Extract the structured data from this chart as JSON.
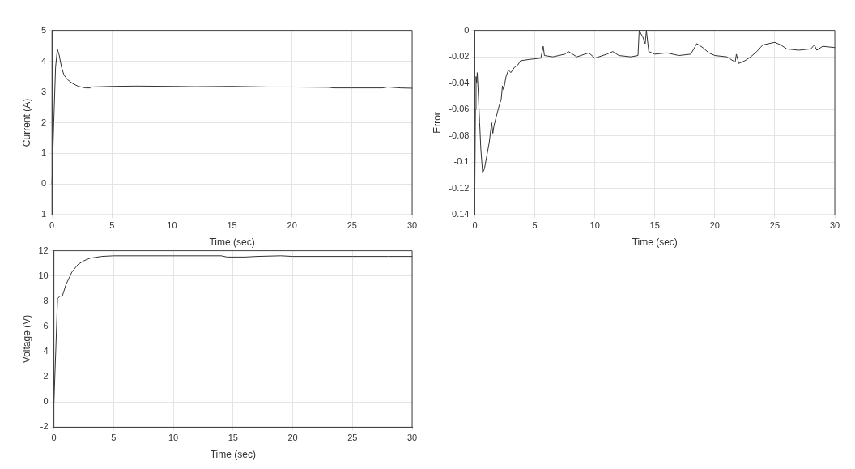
{
  "chart_data": [
    {
      "type": "line",
      "xlabel": "Time (sec)",
      "ylabel": "Current (A)",
      "color": "#333333",
      "xlim": [
        0,
        30
      ],
      "ylim": [
        -1,
        5
      ],
      "xticks": [
        0,
        5,
        10,
        15,
        20,
        25,
        30
      ],
      "yticks": [
        -1,
        0,
        1,
        2,
        3,
        4,
        5
      ],
      "grid": true,
      "x": [
        0,
        0.15,
        0.3,
        0.45,
        0.6,
        0.8,
        1.0,
        1.3,
        1.7,
        2.2,
        2.8,
        3.2,
        3.3,
        5,
        7,
        10,
        12,
        15,
        18,
        20,
        23,
        23.5,
        25,
        27.5,
        28,
        29,
        30
      ],
      "values": [
        0,
        2,
        3.8,
        4.4,
        4.2,
        3.8,
        3.55,
        3.4,
        3.28,
        3.18,
        3.13,
        3.13,
        3.16,
        3.18,
        3.19,
        3.18,
        3.17,
        3.18,
        3.16,
        3.16,
        3.15,
        3.13,
        3.13,
        3.13,
        3.16,
        3.13,
        3.12
      ]
    },
    {
      "type": "line",
      "xlabel": "Time (sec)",
      "ylabel": "Error",
      "color": "#333333",
      "xlim": [
        0,
        30
      ],
      "ylim": [
        -0.14,
        0
      ],
      "xticks": [
        0,
        5,
        10,
        15,
        20,
        25,
        30
      ],
      "yticks": [
        -0.14,
        -0.12,
        -0.1,
        -0.08,
        -0.06,
        -0.04,
        -0.02,
        0
      ],
      "grid": true,
      "x": [
        0,
        0.05,
        0.1,
        0.15,
        0.2,
        0.3,
        0.4,
        0.5,
        0.65,
        0.8,
        1.0,
        1.2,
        1.4,
        1.5,
        1.6,
        1.8,
        2.0,
        2.2,
        2.3,
        2.4,
        2.6,
        2.8,
        3.0,
        3.3,
        3.6,
        3.8,
        4.5,
        5.5,
        5.7,
        5.8,
        6.5,
        7.5,
        7.8,
        8.5,
        9.5,
        10,
        11,
        11.5,
        12,
        13,
        13.6,
        13.7,
        14,
        14.2,
        14.3,
        14.5,
        15,
        16,
        17,
        18,
        18.5,
        19,
        19.5,
        20,
        21,
        21.7,
        21.8,
        22,
        22.5,
        23,
        23.5,
        23.8,
        24,
        25,
        25.5,
        26,
        27,
        28,
        28.3,
        28.5,
        29,
        30
      ],
      "values": [
        -0.12,
        -0.06,
        -0.035,
        -0.04,
        -0.032,
        -0.05,
        -0.07,
        -0.09,
        -0.108,
        -0.105,
        -0.095,
        -0.085,
        -0.07,
        -0.078,
        -0.072,
        -0.065,
        -0.058,
        -0.052,
        -0.042,
        -0.045,
        -0.035,
        -0.03,
        -0.032,
        -0.028,
        -0.026,
        -0.023,
        -0.022,
        -0.021,
        -0.012,
        -0.019,
        -0.02,
        -0.018,
        -0.016,
        -0.02,
        -0.017,
        -0.021,
        -0.018,
        -0.016,
        -0.019,
        -0.02,
        -0.019,
        0,
        -0.005,
        -0.01,
        0,
        -0.016,
        -0.018,
        -0.017,
        -0.019,
        -0.018,
        -0.01,
        -0.013,
        -0.017,
        -0.019,
        -0.02,
        -0.024,
        -0.018,
        -0.025,
        -0.023,
        -0.02,
        -0.016,
        -0.013,
        -0.011,
        -0.009,
        -0.011,
        -0.014,
        -0.015,
        -0.014,
        -0.011,
        -0.015,
        -0.012,
        -0.013
      ]
    },
    {
      "type": "line",
      "xlabel": "Time (sec)",
      "ylabel": "Voltage (V)",
      "color": "#333333",
      "xlim": [
        0,
        30
      ],
      "ylim": [
        -2,
        12
      ],
      "xticks": [
        0,
        5,
        10,
        15,
        20,
        25,
        30
      ],
      "yticks": [
        -2,
        0,
        2,
        4,
        6,
        8,
        10,
        12
      ],
      "grid": true,
      "x": [
        0,
        0.15,
        0.3,
        0.5,
        0.7,
        1.0,
        1.5,
        2,
        2.5,
        3,
        4,
        5,
        10,
        14,
        14.5,
        16,
        17,
        19,
        20,
        25,
        28,
        30
      ],
      "values": [
        0,
        4,
        8.2,
        8.4,
        8.4,
        9.3,
        10.3,
        10.9,
        11.2,
        11.4,
        11.55,
        11.6,
        11.6,
        11.6,
        11.5,
        11.5,
        11.55,
        11.6,
        11.55,
        11.55,
        11.55,
        11.55
      ]
    }
  ]
}
